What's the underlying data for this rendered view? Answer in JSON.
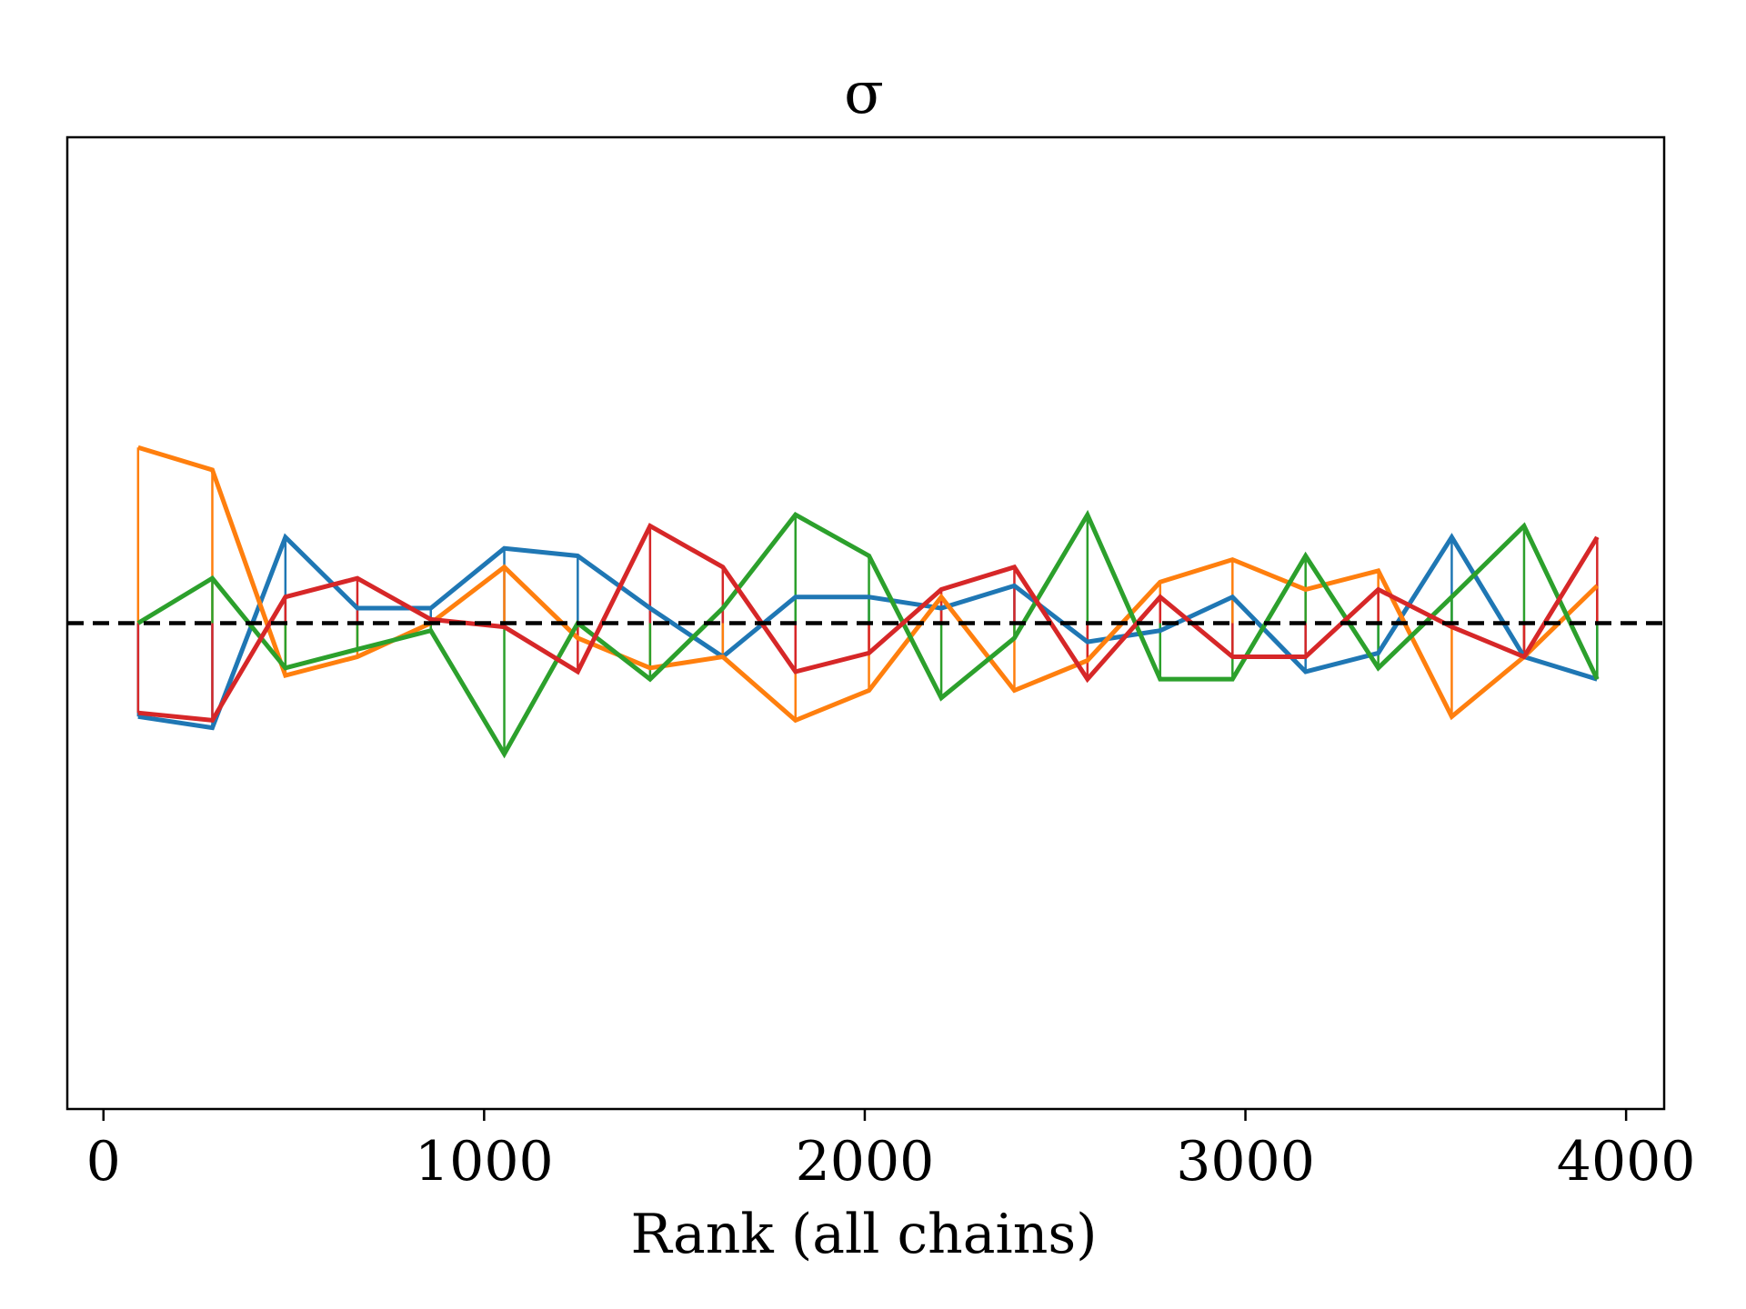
{
  "chart_data": {
    "type": "line",
    "title": "σ",
    "xlabel": "Rank (all chains)",
    "ylabel": "",
    "xlim": [
      -95,
      4100
    ],
    "ylim": [
      0,
      2.6
    ],
    "xticks": [
      0,
      1000,
      2000,
      3000,
      4000
    ],
    "xtick_labels": [
      "0",
      "1000",
      "2000",
      "3000",
      "4000"
    ],
    "y_ticks_visible": false,
    "reference_line": {
      "y": 1.3,
      "style": "dashed",
      "color": "#000000"
    },
    "grid": false,
    "legend": "none",
    "x": [
      91,
      286,
      478,
      667,
      860,
      1053,
      1246,
      1436,
      1627,
      1818,
      2011,
      2201,
      2393,
      2585,
      2776,
      2966,
      3158,
      3349,
      3542,
      3732,
      3924
    ],
    "series": [
      {
        "color": "#1f77b4",
        "values": [
          1.05,
          1.02,
          1.53,
          1.34,
          1.34,
          1.5,
          1.48,
          1.34,
          1.21,
          1.37,
          1.37,
          1.34,
          1.4,
          1.25,
          1.28,
          1.37,
          1.17,
          1.22,
          1.53,
          1.21,
          1.15
        ]
      },
      {
        "color": "#ff7f0e",
        "values": [
          1.77,
          1.71,
          1.16,
          1.21,
          1.3,
          1.45,
          1.26,
          1.18,
          1.21,
          1.04,
          1.12,
          1.37,
          1.12,
          1.2,
          1.41,
          1.47,
          1.39,
          1.44,
          1.05,
          1.21,
          1.4
        ]
      },
      {
        "color": "#2ca02c",
        "values": [
          1.3,
          1.42,
          1.18,
          1.23,
          1.28,
          0.95,
          1.3,
          1.15,
          1.34,
          1.59,
          1.48,
          1.1,
          1.26,
          1.59,
          1.15,
          1.15,
          1.48,
          1.18,
          1.37,
          1.56,
          1.15
        ]
      },
      {
        "color": "#d62728",
        "values": [
          1.06,
          1.04,
          1.37,
          1.42,
          1.31,
          1.29,
          1.17,
          1.56,
          1.45,
          1.17,
          1.22,
          1.39,
          1.45,
          1.15,
          1.37,
          1.21,
          1.21,
          1.39,
          1.29,
          1.21,
          1.53
        ]
      }
    ]
  }
}
